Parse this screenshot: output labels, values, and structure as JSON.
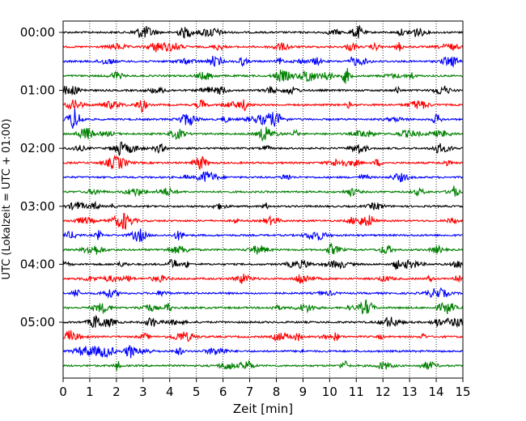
{
  "chart_data": {
    "type": "line",
    "xlabel": "Zeit  [min]",
    "ylabel": "UTC (Lokalzeit = UTC + 01:00)",
    "xlim": [
      0,
      15
    ],
    "x_ticks": [
      "0",
      "1",
      "2",
      "3",
      "4",
      "5",
      "6",
      "7",
      "8",
      "9",
      "10",
      "11",
      "12",
      "13",
      "14",
      "15"
    ],
    "y_tick_labels": [
      "00:00",
      "01:00",
      "02:00",
      "03:00",
      "04:00",
      "05:00"
    ],
    "y_tick_rows": [
      0,
      4,
      8,
      12,
      16,
      20
    ],
    "row_interval_minutes": 15,
    "grid_vertical": true,
    "grid_style": "dotted",
    "color_cycle": [
      "#000000",
      "#ff0000",
      "#0000ff",
      "#008000"
    ],
    "series": [
      {
        "start": "00:00",
        "color": "#000000"
      },
      {
        "start": "00:15",
        "color": "#ff0000"
      },
      {
        "start": "00:30",
        "color": "#0000ff"
      },
      {
        "start": "00:45",
        "color": "#008000"
      },
      {
        "start": "01:00",
        "color": "#000000"
      },
      {
        "start": "01:15",
        "color": "#ff0000"
      },
      {
        "start": "01:30",
        "color": "#0000ff"
      },
      {
        "start": "01:45",
        "color": "#008000"
      },
      {
        "start": "02:00",
        "color": "#000000"
      },
      {
        "start": "02:15",
        "color": "#ff0000"
      },
      {
        "start": "02:30",
        "color": "#0000ff"
      },
      {
        "start": "02:45",
        "color": "#008000"
      },
      {
        "start": "03:00",
        "color": "#000000"
      },
      {
        "start": "03:15",
        "color": "#ff0000"
      },
      {
        "start": "03:30",
        "color": "#0000ff"
      },
      {
        "start": "03:45",
        "color": "#008000"
      },
      {
        "start": "04:00",
        "color": "#000000"
      },
      {
        "start": "04:15",
        "color": "#ff0000"
      },
      {
        "start": "04:30",
        "color": "#0000ff"
      },
      {
        "start": "04:45",
        "color": "#008000"
      },
      {
        "start": "05:00",
        "color": "#000000"
      },
      {
        "start": "05:15",
        "color": "#ff0000"
      },
      {
        "start": "05:30",
        "color": "#0000ff"
      },
      {
        "start": "05:45",
        "color": "#008000"
      }
    ]
  }
}
